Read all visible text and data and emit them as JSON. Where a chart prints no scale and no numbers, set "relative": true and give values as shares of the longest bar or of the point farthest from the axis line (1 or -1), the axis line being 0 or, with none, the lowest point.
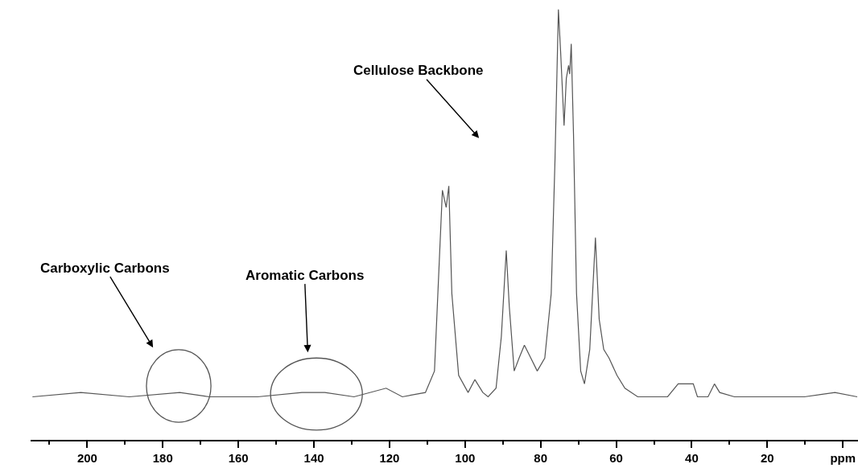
{
  "chart_data": {
    "type": "line",
    "relative": true,
    "x": [
      214.5,
      201.7,
      188.9,
      175.5,
      167.7,
      154.9,
      143.2,
      137.1,
      129.4,
      120.9,
      116.6,
      110.5,
      108.1,
      106.0,
      105.0,
      104.3,
      103.5,
      101.7,
      99.2,
      97.4,
      95.3,
      93.9,
      91.8,
      90.4,
      89.1,
      88.3,
      87.0,
      85.7,
      84.3,
      82.6,
      80.9,
      78.9,
      77.2,
      76.2,
      75.3,
      74.7,
      73.8,
      73.2,
      72.6,
      72.3,
      71.9,
      71.3,
      70.5,
      69.4,
      68.4,
      67.0,
      65.5,
      64.5,
      63.3,
      61.9,
      59.8,
      57.7,
      54.3,
      46.4,
      43.6,
      41.1,
      39.6,
      38.5,
      35.7,
      34.0,
      32.6,
      28.7,
      18.7,
      10.2,
      2.1,
      -3.8
    ],
    "series": [
      {
        "color": "#555555",
        "values": [
          0.1,
          0.11,
          0.1,
          0.11,
          0.1,
          0.1,
          0.11,
          0.11,
          0.1,
          0.12,
          0.1,
          0.11,
          0.16,
          0.58,
          0.54,
          0.59,
          0.34,
          0.15,
          0.11,
          0.14,
          0.11,
          0.1,
          0.12,
          0.24,
          0.44,
          0.31,
          0.16,
          0.19,
          0.22,
          0.19,
          0.16,
          0.19,
          0.34,
          0.65,
          1,
          0.9,
          0.73,
          0.84,
          0.87,
          0.85,
          0.92,
          0.71,
          0.34,
          0.16,
          0.13,
          0.21,
          0.47,
          0.28,
          0.21,
          0.19,
          0.15,
          0.12,
          0.1,
          0.1,
          0.13,
          0.13,
          0.13,
          0.1,
          0.1,
          0.13,
          0.11,
          0.1,
          0.1,
          0.1,
          0.11,
          0.1
        ]
      }
    ],
    "xlim": [
      215,
      -4
    ],
    "xticks": [
      200,
      180,
      160,
      140,
      120,
      100,
      80,
      60,
      40,
      20,
      {
        "value": 0,
        "label": "ppm"
      }
    ],
    "annotations": [
      "Cellulose Backbone",
      "Carboxylic Carbons",
      "Aromatic Carbons"
    ]
  }
}
